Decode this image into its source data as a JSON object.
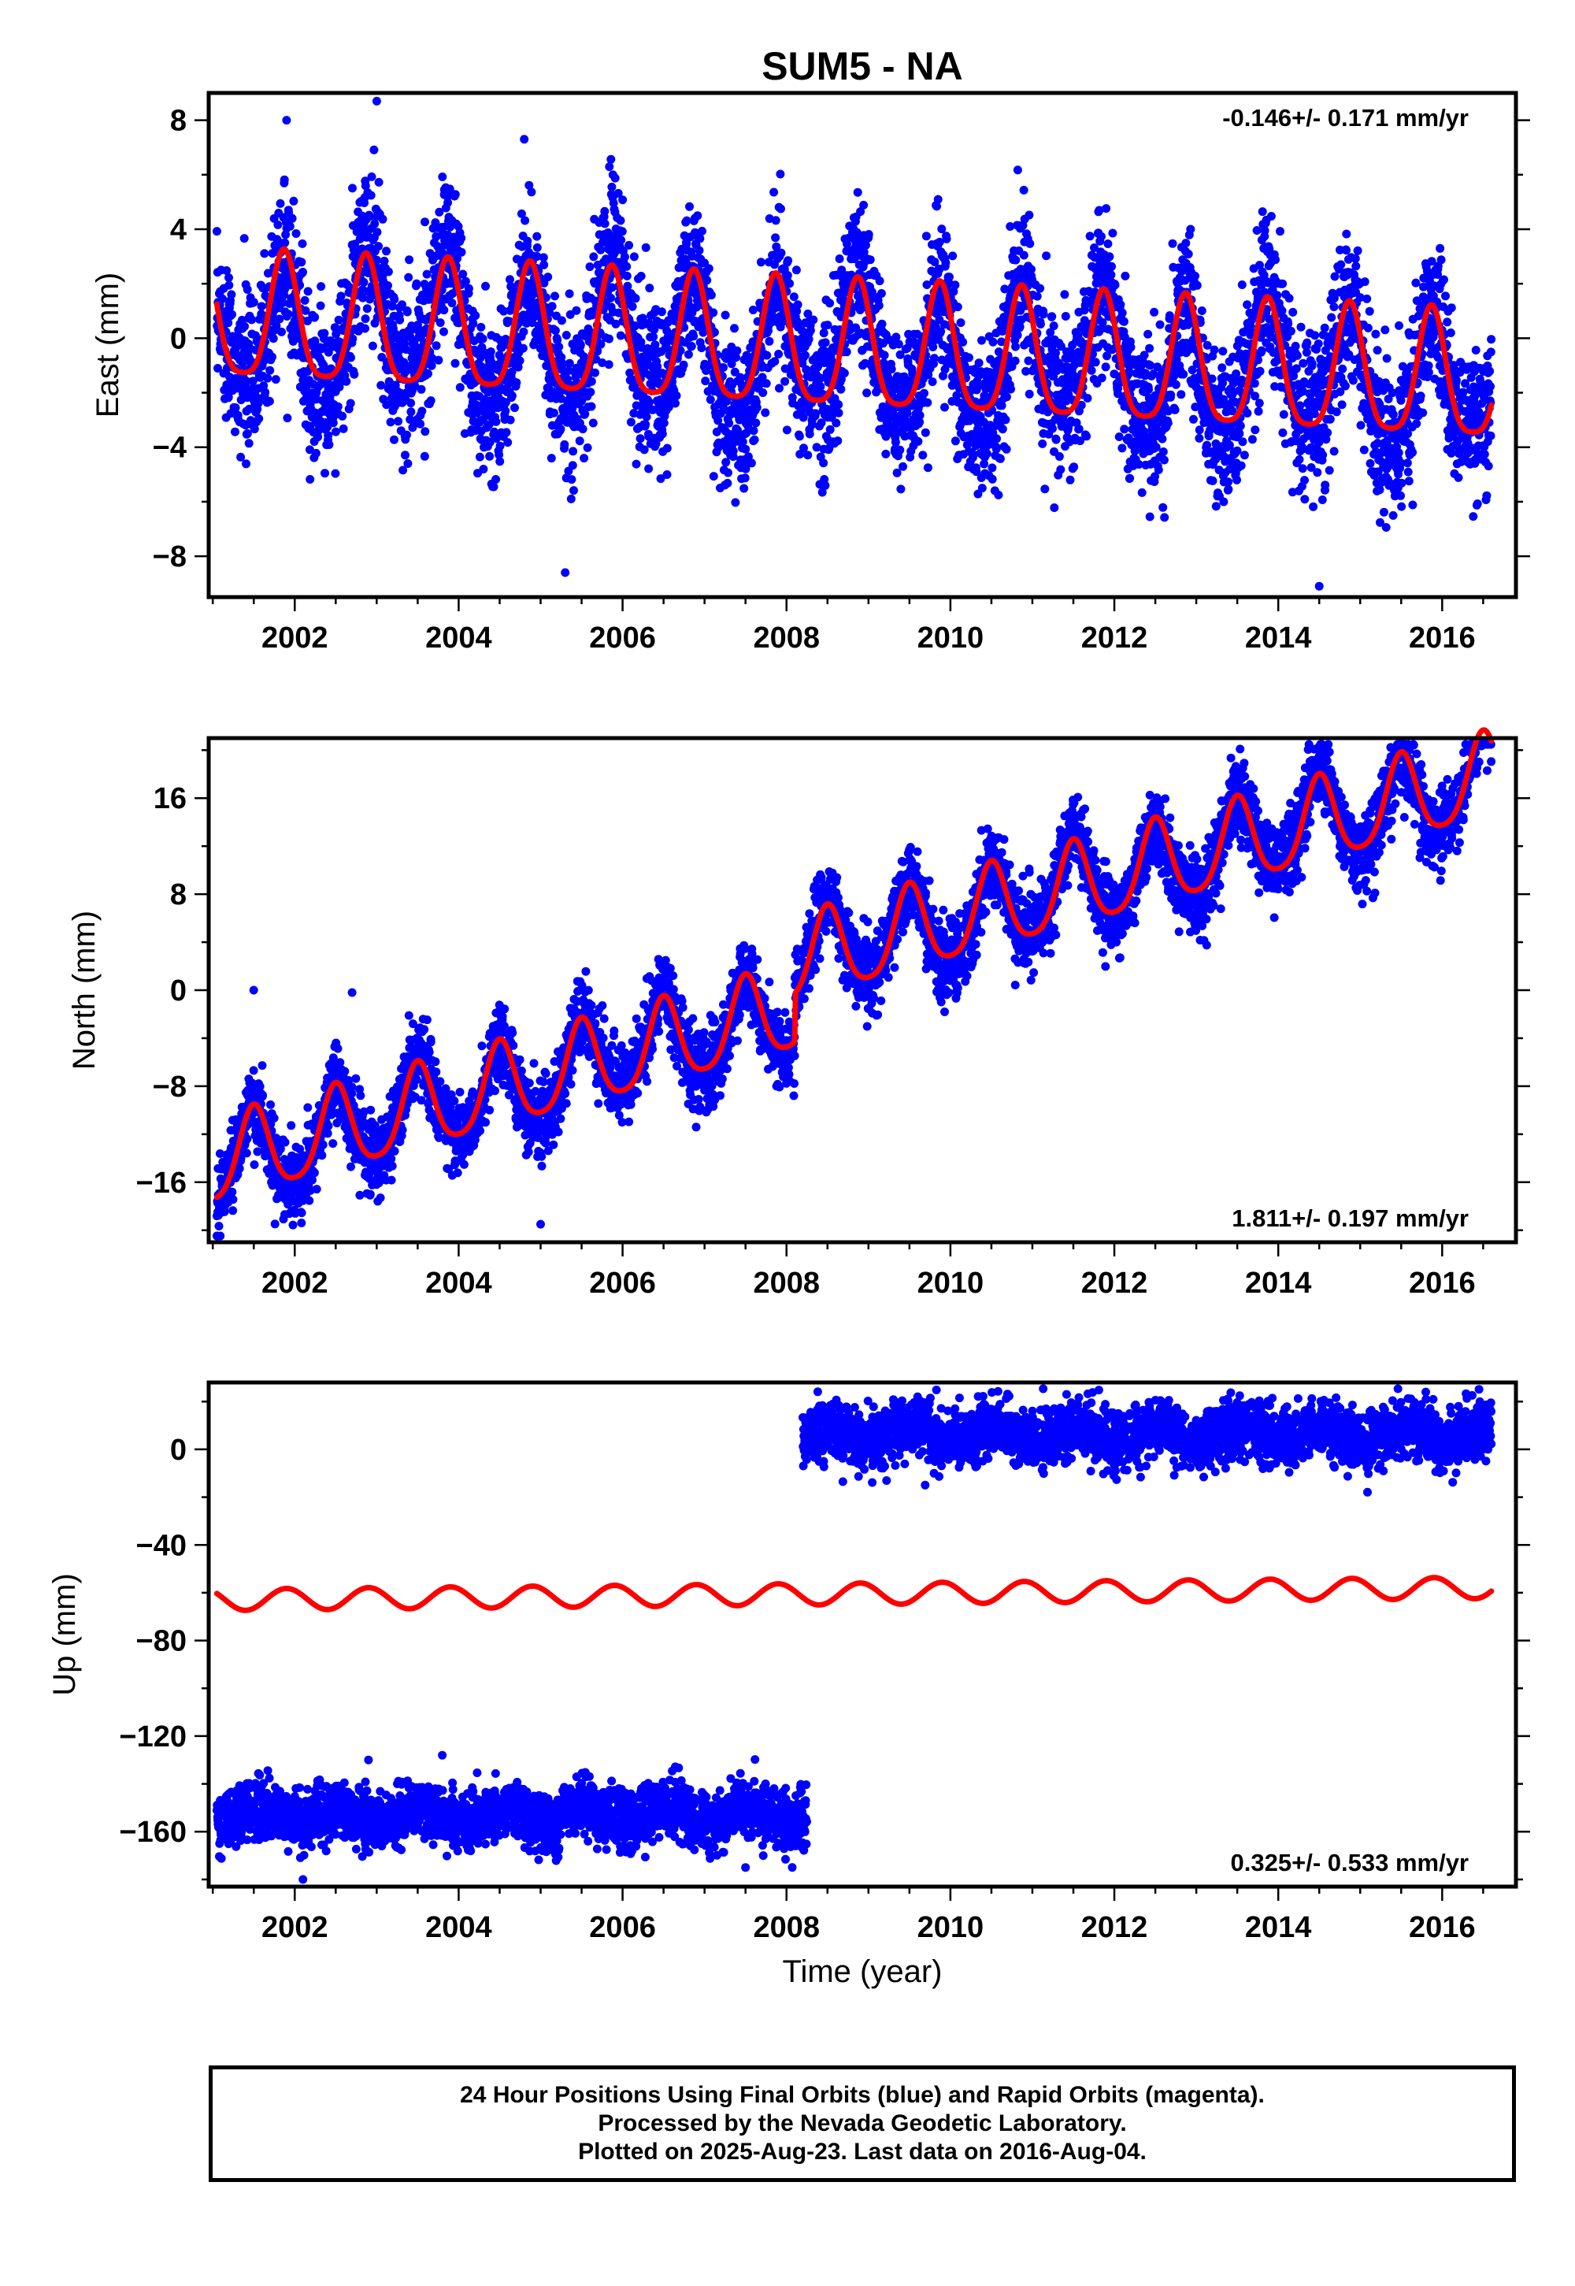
{
  "chart_data": {
    "title": "SUM5 - NA",
    "type": "scatter",
    "x_label": "Time (year)",
    "x_ticks": [
      2002,
      2004,
      2006,
      2008,
      2010,
      2012,
      2014,
      2016
    ],
    "x_range": [
      2000.95,
      2016.9
    ],
    "colors": {
      "final_orbits": "#0000ff",
      "model": "#ff0000",
      "axes": "#000000"
    },
    "panels": [
      {
        "name": "east",
        "ylabel": "East (mm)",
        "ylim": [
          -9.5,
          9
        ],
        "y_ticks": [
          8,
          4,
          0,
          -4,
          -8
        ],
        "y_tick_labels": [
          "8",
          "4",
          "0",
          "−4",
          "−8"
        ],
        "rate_label": "-0.146+/- 0.171 mm/yr",
        "rate_position": "top-right",
        "model": {
          "offset": 0.6,
          "rate_mm_per_yr": -0.146,
          "annual_amplitude": 2.3,
          "annual_phase_year": 0.87,
          "semiannual_amplitude": 0.5
        },
        "data": {
          "start": 2001.05,
          "end": 2016.6,
          "noise_mm": 1.4,
          "outliers": [
            [
              2001.9,
              8.0
            ],
            [
              2003.0,
              8.7
            ],
            [
              2004.8,
              7.3
            ],
            [
              2005.3,
              -8.6
            ],
            [
              2014.5,
              -9.1
            ]
          ]
        }
      },
      {
        "name": "north",
        "ylabel": "North (mm)",
        "ylim": [
          -21,
          21
        ],
        "y_ticks": [
          16,
          8,
          0,
          -8,
          -16
        ],
        "y_tick_labels": [
          "16",
          "8",
          "0",
          "−8",
          "−16"
        ],
        "rate_label": "1.811+/- 0.197 mm/yr",
        "rate_position": "bottom-right",
        "model": {
          "offset": -14.5,
          "rate_mm_per_yr": 1.811,
          "annual_amplitude": 3.5,
          "annual_phase_year": 0.5,
          "semiannual_amplitude": 0.6,
          "step_year": 2008.1,
          "step_mm": 4.0
        },
        "data": {
          "start": 2001.05,
          "end": 2016.6,
          "noise_mm": 1.6,
          "outliers": [
            [
              2001.5,
              0.0
            ],
            [
              2002.7,
              -0.2
            ],
            [
              2005.0,
              -19.5
            ],
            [
              2001.05,
              -20.5
            ],
            [
              2015.6,
              20.0
            ]
          ]
        }
      },
      {
        "name": "up",
        "ylabel": "Up (mm)",
        "ylim": [
          -183,
          28
        ],
        "y_ticks": [
          0,
          -40,
          -80,
          -120,
          -160
        ],
        "y_tick_labels": [
          "0",
          "−40",
          "−80",
          "−120",
          "−160"
        ],
        "rate_label": "0.325+/- 0.533 mm/yr",
        "rate_position": "bottom-right",
        "model": {
          "offset": -63,
          "rate_mm_per_yr": 0.325,
          "annual_amplitude": 4.5,
          "annual_phase_year": 0.9,
          "semiannual_amplitude": 0
        },
        "data_segments": [
          {
            "start": 2001.05,
            "end": 2008.25,
            "mean_mm": -153,
            "noise_mm": 6
          },
          {
            "start": 2008.2,
            "end": 2016.6,
            "mean_mm": 6,
            "noise_mm": 6
          }
        ],
        "outliers": [
          [
            2002.1,
            -180
          ],
          [
            2002.9,
            -130
          ],
          [
            2003.8,
            -128
          ],
          [
            2007.5,
            -175
          ],
          [
            2009.8,
            -10
          ],
          [
            2015.8,
            24
          ]
        ]
      }
    ]
  },
  "footer": {
    "line1": "24 Hour Positions Using Final Orbits (blue) and Rapid Orbits (magenta).",
    "line2": "Processed by the Nevada Geodetic Laboratory.",
    "line3": "Plotted on 2025-Aug-23. Last data on 2016-Aug-04."
  }
}
